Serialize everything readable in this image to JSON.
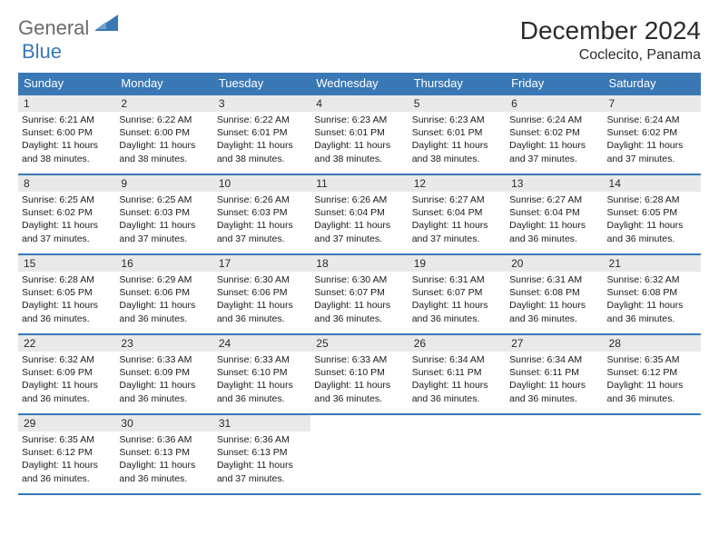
{
  "logo": {
    "text1": "General",
    "text2": "Blue",
    "color1": "#6b6b6b",
    "color2": "#3a78b5"
  },
  "header": {
    "title": "December 2024",
    "location": "Coclecito, Panama"
  },
  "style": {
    "header_bg": "#3a78b5",
    "header_text_color": "#ffffff",
    "daynum_bg": "#e9e9e9",
    "row_border_color": "#3a78b5",
    "page_bg": "#ffffff",
    "title_fontsize": 28,
    "location_fontsize": 16,
    "weekday_fontsize": 13,
    "daynum_fontsize": 12,
    "body_fontsize": 10.5
  },
  "weekdays": [
    "Sunday",
    "Monday",
    "Tuesday",
    "Wednesday",
    "Thursday",
    "Friday",
    "Saturday"
  ],
  "days": [
    {
      "n": 1,
      "sr": "6:21 AM",
      "ss": "6:00 PM",
      "dl": "11 hours and 38 minutes."
    },
    {
      "n": 2,
      "sr": "6:22 AM",
      "ss": "6:00 PM",
      "dl": "11 hours and 38 minutes."
    },
    {
      "n": 3,
      "sr": "6:22 AM",
      "ss": "6:01 PM",
      "dl": "11 hours and 38 minutes."
    },
    {
      "n": 4,
      "sr": "6:23 AM",
      "ss": "6:01 PM",
      "dl": "11 hours and 38 minutes."
    },
    {
      "n": 5,
      "sr": "6:23 AM",
      "ss": "6:01 PM",
      "dl": "11 hours and 38 minutes."
    },
    {
      "n": 6,
      "sr": "6:24 AM",
      "ss": "6:02 PM",
      "dl": "11 hours and 37 minutes."
    },
    {
      "n": 7,
      "sr": "6:24 AM",
      "ss": "6:02 PM",
      "dl": "11 hours and 37 minutes."
    },
    {
      "n": 8,
      "sr": "6:25 AM",
      "ss": "6:02 PM",
      "dl": "11 hours and 37 minutes."
    },
    {
      "n": 9,
      "sr": "6:25 AM",
      "ss": "6:03 PM",
      "dl": "11 hours and 37 minutes."
    },
    {
      "n": 10,
      "sr": "6:26 AM",
      "ss": "6:03 PM",
      "dl": "11 hours and 37 minutes."
    },
    {
      "n": 11,
      "sr": "6:26 AM",
      "ss": "6:04 PM",
      "dl": "11 hours and 37 minutes."
    },
    {
      "n": 12,
      "sr": "6:27 AM",
      "ss": "6:04 PM",
      "dl": "11 hours and 37 minutes."
    },
    {
      "n": 13,
      "sr": "6:27 AM",
      "ss": "6:04 PM",
      "dl": "11 hours and 36 minutes."
    },
    {
      "n": 14,
      "sr": "6:28 AM",
      "ss": "6:05 PM",
      "dl": "11 hours and 36 minutes."
    },
    {
      "n": 15,
      "sr": "6:28 AM",
      "ss": "6:05 PM",
      "dl": "11 hours and 36 minutes."
    },
    {
      "n": 16,
      "sr": "6:29 AM",
      "ss": "6:06 PM",
      "dl": "11 hours and 36 minutes."
    },
    {
      "n": 17,
      "sr": "6:30 AM",
      "ss": "6:06 PM",
      "dl": "11 hours and 36 minutes."
    },
    {
      "n": 18,
      "sr": "6:30 AM",
      "ss": "6:07 PM",
      "dl": "11 hours and 36 minutes."
    },
    {
      "n": 19,
      "sr": "6:31 AM",
      "ss": "6:07 PM",
      "dl": "11 hours and 36 minutes."
    },
    {
      "n": 20,
      "sr": "6:31 AM",
      "ss": "6:08 PM",
      "dl": "11 hours and 36 minutes."
    },
    {
      "n": 21,
      "sr": "6:32 AM",
      "ss": "6:08 PM",
      "dl": "11 hours and 36 minutes."
    },
    {
      "n": 22,
      "sr": "6:32 AM",
      "ss": "6:09 PM",
      "dl": "11 hours and 36 minutes."
    },
    {
      "n": 23,
      "sr": "6:33 AM",
      "ss": "6:09 PM",
      "dl": "11 hours and 36 minutes."
    },
    {
      "n": 24,
      "sr": "6:33 AM",
      "ss": "6:10 PM",
      "dl": "11 hours and 36 minutes."
    },
    {
      "n": 25,
      "sr": "6:33 AM",
      "ss": "6:10 PM",
      "dl": "11 hours and 36 minutes."
    },
    {
      "n": 26,
      "sr": "6:34 AM",
      "ss": "6:11 PM",
      "dl": "11 hours and 36 minutes."
    },
    {
      "n": 27,
      "sr": "6:34 AM",
      "ss": "6:11 PM",
      "dl": "11 hours and 36 minutes."
    },
    {
      "n": 28,
      "sr": "6:35 AM",
      "ss": "6:12 PM",
      "dl": "11 hours and 36 minutes."
    },
    {
      "n": 29,
      "sr": "6:35 AM",
      "ss": "6:12 PM",
      "dl": "11 hours and 36 minutes."
    },
    {
      "n": 30,
      "sr": "6:36 AM",
      "ss": "6:13 PM",
      "dl": "11 hours and 36 minutes."
    },
    {
      "n": 31,
      "sr": "6:36 AM",
      "ss": "6:13 PM",
      "dl": "11 hours and 37 minutes."
    }
  ],
  "labels": {
    "sunrise": "Sunrise:",
    "sunset": "Sunset:",
    "daylight": "Daylight:"
  },
  "first_weekday_index": 0,
  "trailing_empty": 4
}
